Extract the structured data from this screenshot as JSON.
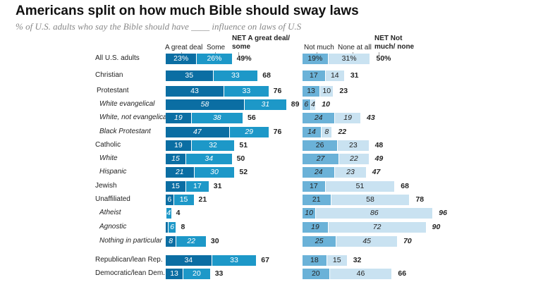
{
  "title": "Americans split on how much Bible should sway laws",
  "subtitle": "% of U.S. adults who say the Bible should have ____ influence on laws of U.S",
  "colors": {
    "great_deal": "#0b6ea3",
    "some": "#1d98c8",
    "not_much": "#6bb2d8",
    "none_at_all": "#c9e2f1"
  },
  "chart_data": {
    "type": "bar",
    "stacked": true,
    "series_headers": {
      "great_deal": "A great deal",
      "some": "Some",
      "net_left": "NET A great deal/ some",
      "not_much": "Not much",
      "none_at_all": "None at all",
      "net_right": "NET Not much/ none"
    },
    "rows": [
      {
        "label": "All U.S. adults",
        "italic": false,
        "gd": 23,
        "gd_l": "23%",
        "so": 26,
        "so_l": "26%",
        "net_l": "49%",
        "nm": 19,
        "nm_l": "19%",
        "na": 31,
        "na_l": "31%",
        "net_r": "50%"
      },
      {
        "label": "Christian",
        "italic": false,
        "gd": 35,
        "gd_l": "35",
        "so": 33,
        "so_l": "33",
        "net_l": "68",
        "nm": 17,
        "nm_l": "17",
        "na": 14,
        "na_l": "14",
        "net_r": "31"
      },
      {
        "label": "Protestant",
        "italic": false,
        "gd": 43,
        "gd_l": "43",
        "so": 33,
        "so_l": "33",
        "net_l": "76",
        "nm": 13,
        "nm_l": "13",
        "na": 10,
        "na_l": "10",
        "net_r": "23"
      },
      {
        "label": "White evangelical",
        "italic": true,
        "gd": 58,
        "gd_l": "58",
        "so": 31,
        "so_l": "31",
        "net_l": "89",
        "nm": 6,
        "nm_l": "6",
        "na": 4,
        "na_l": "4",
        "net_r": "10"
      },
      {
        "label": "White, not evangelical",
        "italic": true,
        "gd": 19,
        "gd_l": "19",
        "so": 38,
        "so_l": "38",
        "net_l": "56",
        "nm": 24,
        "nm_l": "24",
        "na": 19,
        "na_l": "19",
        "net_r": "43"
      },
      {
        "label": "Black Protestant",
        "italic": true,
        "gd": 47,
        "gd_l": "47",
        "so": 29,
        "so_l": "29",
        "net_l": "76",
        "nm": 14,
        "nm_l": "14",
        "na": 8,
        "na_l": "8",
        "net_r": "22"
      },
      {
        "label": "Catholic",
        "italic": false,
        "gd": 19,
        "gd_l": "19",
        "so": 32,
        "so_l": "32",
        "net_l": "51",
        "nm": 26,
        "nm_l": "26",
        "na": 23,
        "na_l": "23",
        "net_r": "48"
      },
      {
        "label": "White",
        "italic": true,
        "gd": 15,
        "gd_l": "15",
        "so": 34,
        "so_l": "34",
        "net_l": "50",
        "nm": 27,
        "nm_l": "27",
        "na": 22,
        "na_l": "22",
        "net_r": "49"
      },
      {
        "label": "Hispanic",
        "italic": true,
        "gd": 21,
        "gd_l": "21",
        "so": 30,
        "so_l": "30",
        "net_l": "52",
        "nm": 24,
        "nm_l": "24",
        "na": 23,
        "na_l": "23",
        "net_r": "47"
      },
      {
        "label": "Jewish",
        "italic": false,
        "gd": 15,
        "gd_l": "15",
        "so": 17,
        "so_l": "17",
        "net_l": "31",
        "nm": 17,
        "nm_l": "17",
        "na": 51,
        "na_l": "51",
        "net_r": "68"
      },
      {
        "label": "Unaffiliated",
        "italic": false,
        "gd": 6,
        "gd_l": "6",
        "so": 15,
        "so_l": "15",
        "net_l": "21",
        "nm": 21,
        "nm_l": "21",
        "na": 58,
        "na_l": "58",
        "net_r": "78"
      },
      {
        "label": "Atheist",
        "italic": true,
        "gd": 0.5,
        "gd_l": "",
        "so": 4,
        "so_l": "4",
        "net_l": "4",
        "nm": 10,
        "nm_l": "10",
        "na": 86,
        "na_l": "86",
        "net_r": "96"
      },
      {
        "label": "Agnostic",
        "italic": true,
        "gd": 2,
        "gd_l": "",
        "so": 6,
        "so_l": "6",
        "net_l": "8",
        "nm": 19,
        "nm_l": "19",
        "na": 72,
        "na_l": "72",
        "net_r": "90"
      },
      {
        "label": "Nothing in particular",
        "italic": true,
        "gd": 8,
        "gd_l": "8",
        "so": 22,
        "so_l": "22",
        "net_l": "30",
        "nm": 25,
        "nm_l": "25",
        "na": 45,
        "na_l": "45",
        "net_r": "70"
      },
      {
        "label": "Republican/lean Rep.",
        "italic": false,
        "gd": 34,
        "gd_l": "34",
        "so": 33,
        "so_l": "33",
        "net_l": "67",
        "nm": 18,
        "nm_l": "18",
        "na": 15,
        "na_l": "15",
        "net_r": "32"
      },
      {
        "label": "Democratic/lean Dem.",
        "italic": false,
        "gd": 13,
        "gd_l": "13",
        "so": 20,
        "so_l": "20",
        "net_l": "33",
        "nm": 20,
        "nm_l": "20",
        "na": 46,
        "na_l": "46",
        "net_r": "66"
      }
    ]
  }
}
